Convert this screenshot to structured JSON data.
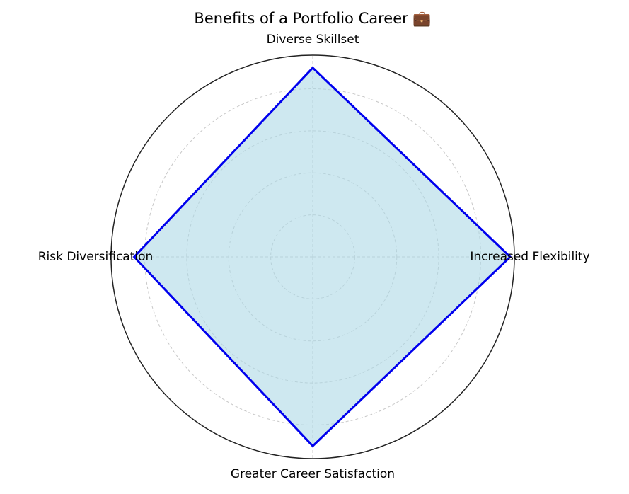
{
  "chart_data": {
    "type": "radar",
    "title": "Benefits of a Portfolio Career 💼",
    "categories": [
      "Increased Flexibility",
      "Diverse Skillset",
      "Risk Diversification",
      "Greater Career Satisfaction"
    ],
    "values": [
      94,
      90,
      85,
      90
    ],
    "color": "#0000ee",
    "fill": "#add8e6",
    "ylim": [
      0,
      96
    ],
    "yticks": [
      20,
      40,
      60,
      80
    ],
    "grid": true
  }
}
